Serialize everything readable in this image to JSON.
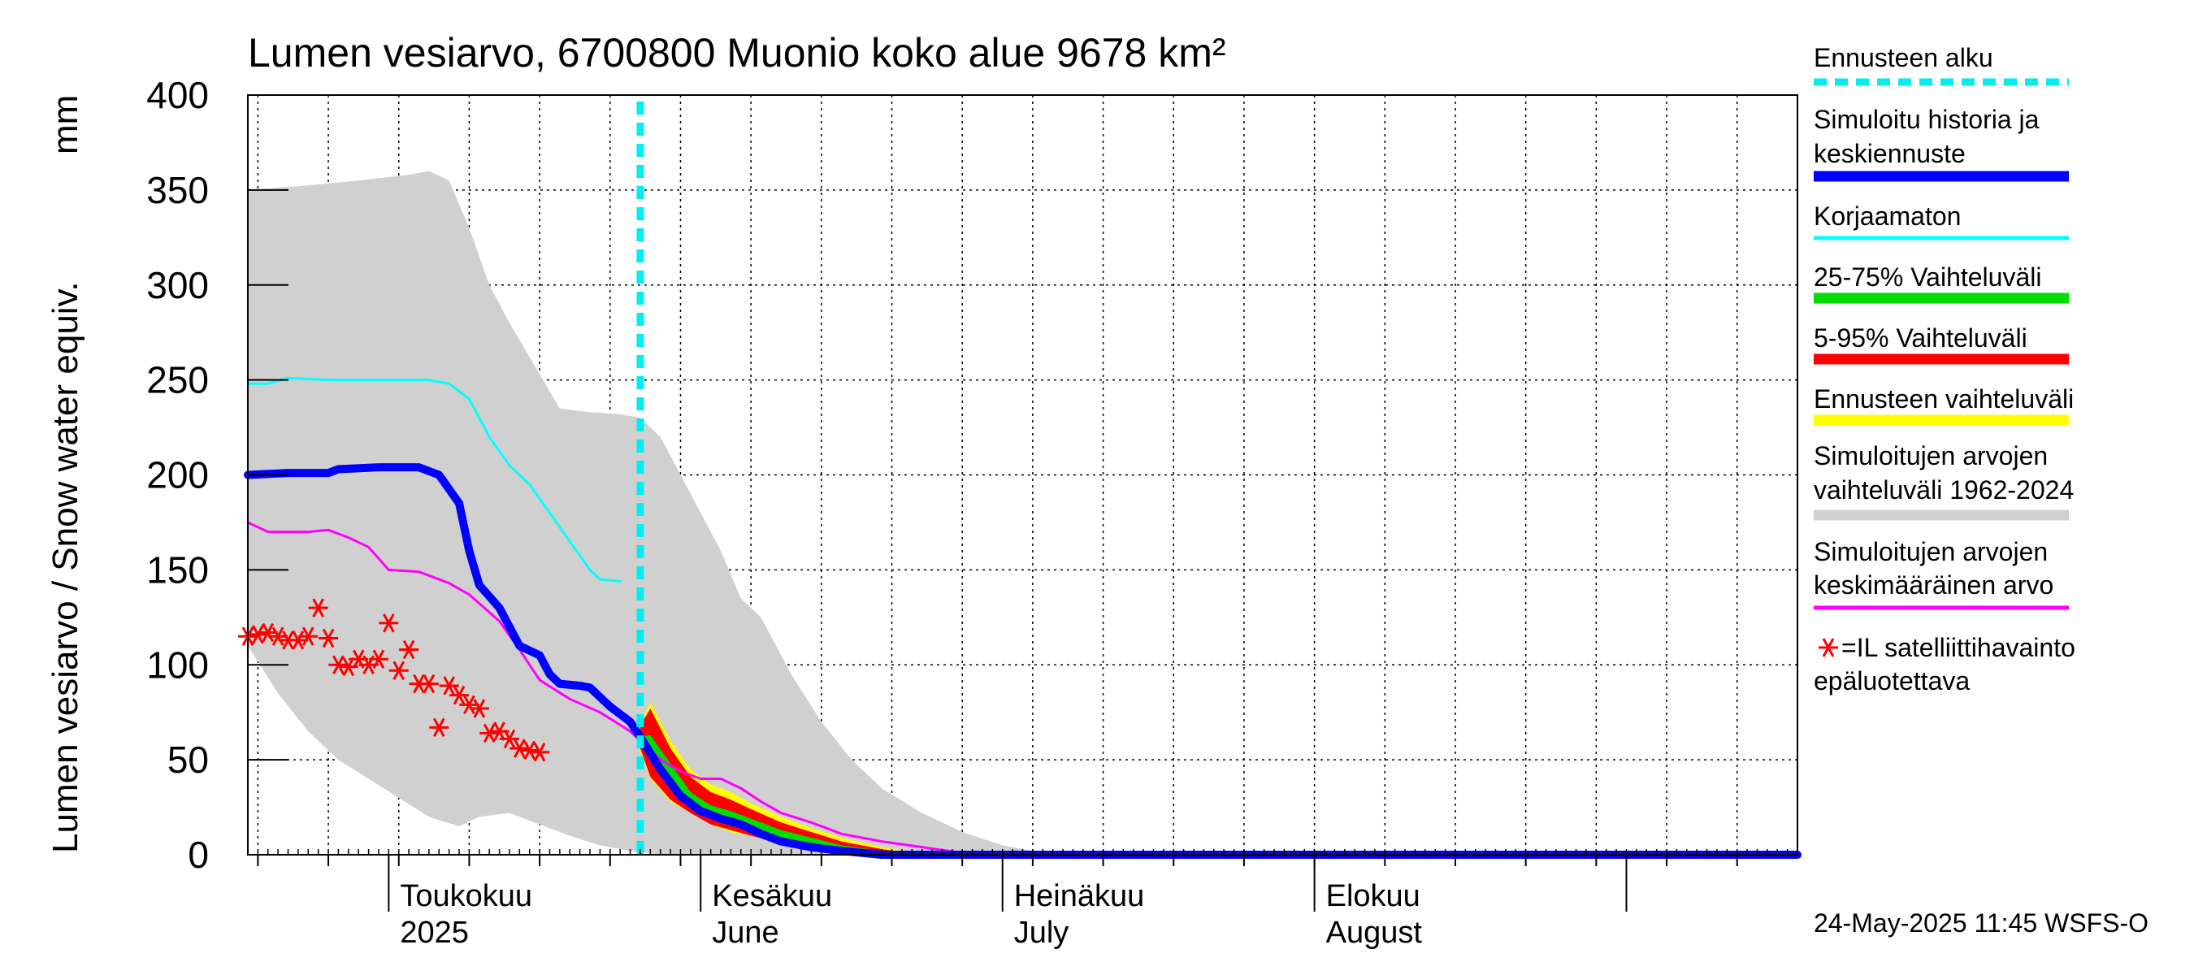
{
  "chart_data": {
    "type": "area",
    "title": "Lumen vesiarvo, 6700800 Muonio koko alue 9678 km²",
    "ylabel_fi": "Lumen vesiarvo / Snow water equiv.",
    "ylabel_unit": "mm",
    "ylim": [
      0,
      400
    ],
    "yticks": [
      0,
      50,
      100,
      150,
      200,
      250,
      300,
      350,
      400
    ],
    "x_unit": "day_of_year_2025",
    "xlim": [
      107,
      261
    ],
    "forecast_start_day": 146,
    "month_ticks": [
      121,
      152,
      182,
      213,
      244
    ],
    "week_ticks": [
      108,
      115,
      122,
      129,
      136,
      143,
      150,
      157,
      164,
      171,
      178,
      185,
      192,
      199,
      206,
      213,
      220,
      227,
      234,
      241,
      248,
      255
    ],
    "month_labels": [
      {
        "day": 121,
        "fi": "Toukokuu",
        "en": "2025"
      },
      {
        "day": 152,
        "fi": "Kesäkuu",
        "en": "June"
      },
      {
        "day": 182,
        "fi": "Heinäkuu",
        "en": "July"
      },
      {
        "day": 213,
        "fi": "Elokuu",
        "en": "August"
      }
    ],
    "series": [
      {
        "name": "Simuloitujen arvojen vaihteluväli 1962-2024",
        "color": "#d0d0d0",
        "kind": "band",
        "upper": [
          [
            107,
            350
          ],
          [
            112,
            352
          ],
          [
            118,
            355
          ],
          [
            123,
            358
          ],
          [
            125,
            360
          ],
          [
            127,
            355
          ],
          [
            129,
            330
          ],
          [
            131,
            300
          ],
          [
            133,
            280
          ],
          [
            135,
            262
          ],
          [
            138,
            235
          ],
          [
            141,
            233
          ],
          [
            144,
            232
          ],
          [
            146,
            230
          ],
          [
            148,
            220
          ],
          [
            150,
            200
          ],
          [
            152,
            180
          ],
          [
            154,
            160
          ],
          [
            156,
            135
          ],
          [
            158,
            125
          ],
          [
            161,
            95
          ],
          [
            164,
            70
          ],
          [
            167,
            50
          ],
          [
            170,
            35
          ],
          [
            174,
            22
          ],
          [
            178,
            12
          ],
          [
            182,
            5
          ],
          [
            186,
            1
          ],
          [
            190,
            0
          ]
        ],
        "lower": [
          [
            107,
            110
          ],
          [
            110,
            85
          ],
          [
            113,
            65
          ],
          [
            116,
            50
          ],
          [
            119,
            40
          ],
          [
            122,
            30
          ],
          [
            125,
            20
          ],
          [
            128,
            15
          ],
          [
            130,
            20
          ],
          [
            133,
            22
          ],
          [
            136,
            16
          ],
          [
            139,
            10
          ],
          [
            142,
            5
          ],
          [
            145,
            2
          ],
          [
            148,
            0
          ]
        ]
      },
      {
        "name": "Ennusteen vaihteluväli",
        "color": "#ffff00",
        "kind": "band",
        "upper": [
          [
            146,
            70
          ],
          [
            147,
            80
          ],
          [
            149,
            60
          ],
          [
            151,
            45
          ],
          [
            153,
            37
          ],
          [
            155,
            33
          ],
          [
            157,
            27
          ],
          [
            160,
            20
          ],
          [
            163,
            14
          ],
          [
            166,
            9
          ],
          [
            170,
            4
          ],
          [
            174,
            1
          ],
          [
            176,
            0
          ]
        ],
        "lower": [
          [
            146,
            55
          ],
          [
            147,
            40
          ],
          [
            149,
            28
          ],
          [
            151,
            22
          ],
          [
            153,
            16
          ],
          [
            155,
            12
          ],
          [
            157,
            10
          ],
          [
            160,
            6
          ],
          [
            163,
            4
          ],
          [
            166,
            2
          ],
          [
            170,
            0
          ]
        ]
      },
      {
        "name": "5-95% Vaihteluväli",
        "color": "#ff0000",
        "kind": "band",
        "upper": [
          [
            146,
            68
          ],
          [
            147,
            77
          ],
          [
            149,
            56
          ],
          [
            151,
            41
          ],
          [
            153,
            33
          ],
          [
            155,
            29
          ],
          [
            157,
            24
          ],
          [
            160,
            17
          ],
          [
            163,
            12
          ],
          [
            166,
            7
          ],
          [
            170,
            3
          ],
          [
            174,
            0
          ]
        ],
        "lower": [
          [
            146,
            56
          ],
          [
            147,
            41
          ],
          [
            149,
            29
          ],
          [
            151,
            22
          ],
          [
            153,
            16
          ],
          [
            155,
            13
          ],
          [
            157,
            10
          ],
          [
            160,
            6
          ],
          [
            163,
            4
          ],
          [
            166,
            2
          ],
          [
            170,
            0
          ]
        ]
      },
      {
        "name": "25-75% Vaihteluväli",
        "color": "#00dd00",
        "kind": "band",
        "upper": [
          [
            146,
            62
          ],
          [
            147,
            63
          ],
          [
            149,
            48
          ],
          [
            151,
            33
          ],
          [
            153,
            26
          ],
          [
            155,
            23
          ],
          [
            157,
            19
          ],
          [
            160,
            13
          ],
          [
            163,
            9
          ],
          [
            166,
            5
          ],
          [
            170,
            2
          ],
          [
            174,
            0
          ]
        ],
        "lower": [
          [
            146,
            58
          ],
          [
            147,
            52
          ],
          [
            149,
            40
          ],
          [
            151,
            27
          ],
          [
            153,
            20
          ],
          [
            155,
            17
          ],
          [
            157,
            14
          ],
          [
            160,
            9
          ],
          [
            163,
            6
          ],
          [
            166,
            3
          ],
          [
            170,
            1
          ],
          [
            174,
            0
          ]
        ]
      },
      {
        "name": "Simuloitujen arvojen keskimääräinen arvo",
        "color": "#ff00ff",
        "kind": "line",
        "width": 3,
        "points": [
          [
            107,
            175
          ],
          [
            109,
            170
          ],
          [
            113,
            170
          ],
          [
            115,
            171
          ],
          [
            117,
            167
          ],
          [
            119,
            162
          ],
          [
            121,
            150
          ],
          [
            124,
            149
          ],
          [
            127,
            143
          ],
          [
            129,
            137
          ],
          [
            132,
            123
          ],
          [
            134,
            108
          ],
          [
            136,
            92
          ],
          [
            139,
            82
          ],
          [
            142,
            75
          ],
          [
            145,
            65
          ],
          [
            148,
            50
          ],
          [
            150,
            44
          ],
          [
            152,
            40
          ],
          [
            154,
            40
          ],
          [
            156,
            35
          ],
          [
            158,
            28
          ],
          [
            160,
            22
          ],
          [
            163,
            17
          ],
          [
            166,
            11
          ],
          [
            170,
            7
          ],
          [
            174,
            4
          ],
          [
            178,
            1
          ],
          [
            180,
            0
          ],
          [
            261,
            0
          ]
        ]
      },
      {
        "name": "Korjaamaton",
        "color": "#00ffff",
        "kind": "line",
        "width": 3,
        "points": [
          [
            107,
            248
          ],
          [
            109,
            248
          ],
          [
            111,
            251
          ],
          [
            115,
            250
          ],
          [
            125,
            250
          ],
          [
            127,
            248
          ],
          [
            129,
            240
          ],
          [
            131,
            220
          ],
          [
            133,
            205
          ],
          [
            135,
            195
          ],
          [
            137,
            180
          ],
          [
            139,
            165
          ],
          [
            141,
            150
          ],
          [
            142,
            145
          ],
          [
            144,
            144
          ]
        ]
      },
      {
        "name": "Simuloitu historia ja keskiennuste",
        "color": "#0000ff",
        "kind": "line",
        "width": 10,
        "points": [
          [
            107,
            200
          ],
          [
            111,
            201
          ],
          [
            115,
            201
          ],
          [
            116,
            203
          ],
          [
            120,
            204
          ],
          [
            124,
            204
          ],
          [
            126,
            200
          ],
          [
            128,
            185
          ],
          [
            129,
            160
          ],
          [
            130,
            142
          ],
          [
            132,
            130
          ],
          [
            134,
            110
          ],
          [
            136,
            105
          ],
          [
            137,
            95
          ],
          [
            138,
            90
          ],
          [
            140,
            89
          ],
          [
            141,
            88
          ],
          [
            143,
            78
          ],
          [
            145,
            70
          ],
          [
            146,
            62
          ],
          [
            148,
            45
          ],
          [
            150,
            31
          ],
          [
            152,
            23
          ],
          [
            154,
            19
          ],
          [
            156,
            16
          ],
          [
            158,
            11
          ],
          [
            160,
            7
          ],
          [
            163,
            4
          ],
          [
            166,
            2
          ],
          [
            170,
            0
          ],
          [
            261,
            0
          ]
        ]
      },
      {
        "name": "Ennusteen alku",
        "color": "#00eeee",
        "kind": "vline",
        "day": 146
      }
    ],
    "satellite_observations": {
      "name": "=IL satelliittihavainto epäluotettava",
      "color": "#ff0000",
      "points": [
        [
          107,
          115
        ],
        [
          108,
          116
        ],
        [
          109,
          117
        ],
        [
          110,
          115
        ],
        [
          111,
          113
        ],
        [
          112,
          113
        ],
        [
          113,
          115
        ],
        [
          114,
          130
        ],
        [
          115,
          114
        ],
        [
          116,
          100
        ],
        [
          117,
          99
        ],
        [
          118,
          103
        ],
        [
          119,
          100
        ],
        [
          120,
          103
        ],
        [
          121,
          122
        ],
        [
          122,
          97
        ],
        [
          123,
          108
        ],
        [
          124,
          90
        ],
        [
          125,
          90
        ],
        [
          126,
          67
        ],
        [
          127,
          89
        ],
        [
          128,
          84
        ],
        [
          129,
          79
        ],
        [
          130,
          77
        ],
        [
          131,
          64
        ],
        [
          132,
          65
        ],
        [
          133,
          61
        ],
        [
          134,
          56
        ],
        [
          135,
          55
        ],
        [
          136,
          54
        ]
      ]
    }
  },
  "legend": {
    "forecast_start": "Ennusteen alku",
    "sim_line1": "Simuloitu historia ja",
    "sim_line2": "keskiennuste",
    "uncorrected": "Korjaamaton",
    "p25_75": "25-75% Vaihteluväli",
    "p5_95": "5-95% Vaihteluväli",
    "forecast_range": "Ennusteen vaihteluväli",
    "hist_range_line1": "Simuloitujen arvojen",
    "hist_range_line2": "vaihteluväli 1962-2024",
    "mean_line1": "Simuloitujen arvojen",
    "mean_line2": "keskimääräinen arvo",
    "sat_line1": "=IL satelliittihavainto",
    "sat_line2": "epäluotettava"
  },
  "footer": {
    "timestamp": "24-May-2025 11:45 WSFS-O"
  },
  "colors": {
    "forecast_start": "#00eeee",
    "sim": "#0000ff",
    "uncorrected": "#00ffff",
    "p25_75": "#00dd00",
    "p5_95": "#ff0000",
    "forecast_range": "#ffff00",
    "hist_range": "#d0d0d0",
    "mean": "#ff00ff",
    "sat": "#ff0000"
  }
}
